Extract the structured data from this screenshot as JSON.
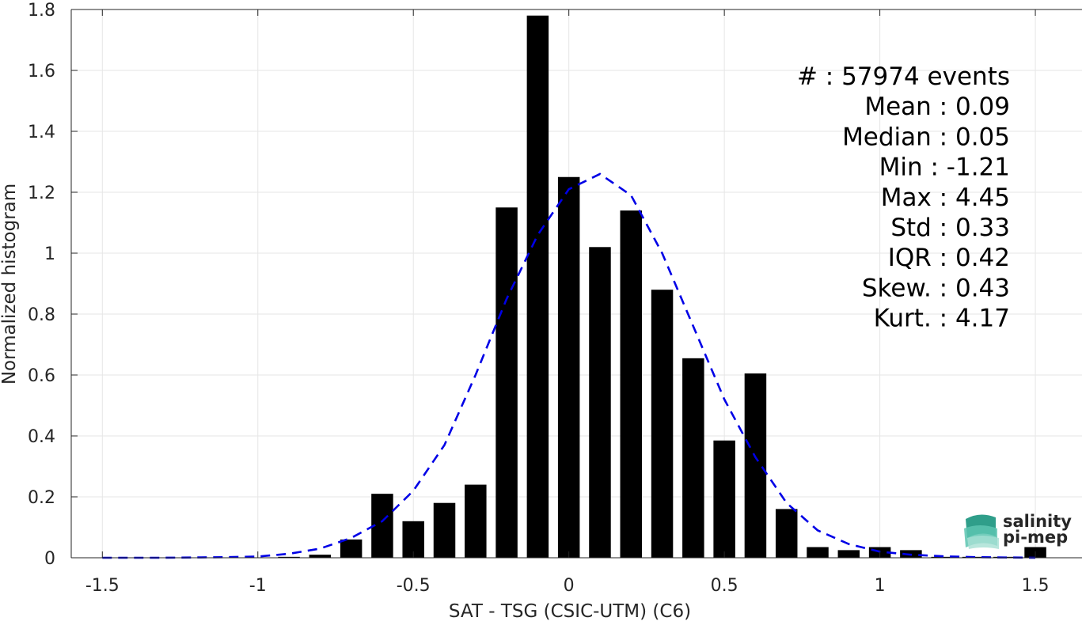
{
  "chart_data": {
    "type": "bar",
    "xlabel": "SAT - TSG (CSIC-UTM) (C6)",
    "ylabel": "Normalized histogram",
    "xlim": [
      -1.6,
      1.65
    ],
    "ylim": [
      0,
      1.8
    ],
    "xticks": [
      "-1.5",
      "-1",
      "-0.5",
      "0",
      "0.5",
      "1",
      "1.5"
    ],
    "xtick_values": [
      -1.5,
      -1,
      -0.5,
      0,
      0.5,
      1,
      1.5
    ],
    "yticks": [
      "0",
      "0.2",
      "0.4",
      "0.6",
      "0.8",
      "1",
      "1.2",
      "1.4",
      "1.6",
      "1.8"
    ],
    "ytick_values": [
      0,
      0.2,
      0.4,
      0.6,
      0.8,
      1.0,
      1.2,
      1.4,
      1.6,
      1.8
    ],
    "grid": true,
    "bar_width": 0.07,
    "bars": {
      "x": [
        -1.5,
        -1.4,
        -1.3,
        -1.2,
        -1.1,
        -1.0,
        -0.9,
        -0.8,
        -0.7,
        -0.6,
        -0.5,
        -0.4,
        -0.3,
        -0.2,
        -0.1,
        0.0,
        0.1,
        0.2,
        0.3,
        0.4,
        0.5,
        0.6,
        0.7,
        0.8,
        0.9,
        1.0,
        1.1,
        1.2,
        1.3,
        1.4,
        1.5
      ],
      "values": [
        0,
        0,
        0,
        0,
        0,
        0,
        0.003,
        0.01,
        0.06,
        0.21,
        0.12,
        0.18,
        0.24,
        1.15,
        1.78,
        1.25,
        1.02,
        1.14,
        0.88,
        0.655,
        0.385,
        0.605,
        0.16,
        0.035,
        0.025,
        0.035,
        0.025,
        0.003,
        0.003,
        0.003,
        0.035
      ],
      "color": "#000000"
    },
    "fit_curve": {
      "style": "dashed",
      "color": "#0000e6",
      "x": [
        -1.5,
        -1.4,
        -1.3,
        -1.2,
        -1.1,
        -1.0,
        -0.9,
        -0.8,
        -0.7,
        -0.6,
        -0.5,
        -0.4,
        -0.3,
        -0.2,
        -0.1,
        0.0,
        0.1,
        0.2,
        0.3,
        0.4,
        0.5,
        0.6,
        0.7,
        0.8,
        0.9,
        1.0,
        1.1,
        1.2,
        1.3,
        1.4,
        1.5
      ],
      "values": [
        0,
        0,
        0,
        0.001,
        0.002,
        0.004,
        0.013,
        0.03,
        0.065,
        0.12,
        0.22,
        0.37,
        0.6,
        0.85,
        1.06,
        1.21,
        1.26,
        1.19,
        1.0,
        0.76,
        0.52,
        0.33,
        0.18,
        0.09,
        0.045,
        0.02,
        0.01,
        0.005,
        0.002,
        0.001,
        0
      ]
    },
    "stats": [
      {
        "label": "#",
        "value": "  : 57974 events"
      },
      {
        "label": "Mean :",
        "value": " 0.09"
      },
      {
        "label": "Median :",
        "value": " 0.05"
      },
      {
        "label": "Min :",
        "value": " -1.21"
      },
      {
        "label": "Max :",
        "value": " 4.45"
      },
      {
        "label": "Std :",
        "value": " 0.33"
      },
      {
        "label": "IQR :",
        "value": " 0.42"
      },
      {
        "label": "Skew. :",
        "value": " 0.43"
      },
      {
        "label": "Kurt. :",
        "value": " 4.17"
      }
    ]
  },
  "logo": {
    "line1": "salinity",
    "line2": "pi-mep",
    "color_top": "#21a98b",
    "color_bottom": "#2e8f86"
  }
}
